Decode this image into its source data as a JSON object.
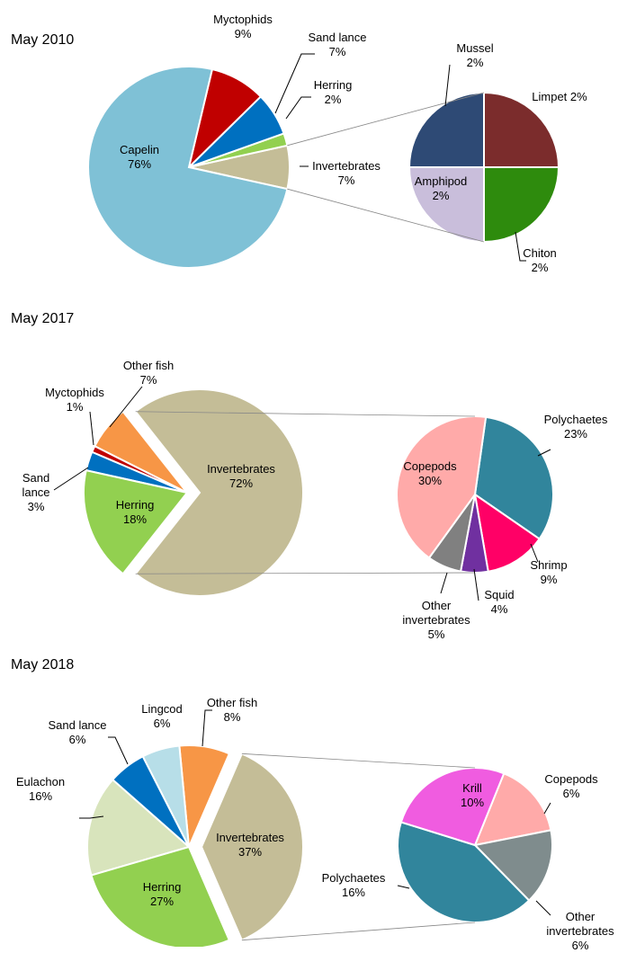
{
  "chart_data": [
    {
      "type": "pie",
      "title": "May 2010",
      "categories": [
        "Invertebrates",
        "Herring",
        "Sand lance",
        "Myctophids",
        "Capelin"
      ],
      "values": [
        7,
        2,
        7,
        9,
        76
      ],
      "value_labels": [
        "7%",
        "2%",
        "7%",
        "9%",
        "76%"
      ],
      "colors": [
        "#c4bd97",
        "#92d050",
        "#0070c0",
        "#c00000",
        "#7fc1d6"
      ],
      "sub": {
        "categories": [
          "Limpet",
          "Chiton",
          "Amphipod",
          "Mussel"
        ],
        "values": [
          2,
          2,
          2,
          2
        ],
        "value_labels": [
          "2%",
          "2%",
          "2%",
          "2%"
        ],
        "colors": [
          "#7b2c2c",
          "#2e8b0d",
          "#c9bedb",
          "#2e4a75"
        ]
      }
    },
    {
      "type": "pie",
      "title": "May 2017",
      "categories": [
        "Invertebrates",
        "Other fish",
        "Myctophids",
        "Sand lance",
        "Herring"
      ],
      "values": [
        72,
        7,
        1,
        3,
        18
      ],
      "value_labels": [
        "72%",
        "7%",
        "1%",
        "3%",
        "18%"
      ],
      "colors": [
        "#c4bd97",
        "#f79646",
        "#c00000",
        "#0070c0",
        "#92d050"
      ],
      "sub": {
        "categories": [
          "Polychaetes",
          "Shrimp",
          "Squid",
          "Other invertebrates",
          "Copepods"
        ],
        "values": [
          23,
          9,
          4,
          5,
          30
        ],
        "value_labels": [
          "23%",
          "9%",
          "4%",
          "5%",
          "30%"
        ],
        "colors": [
          "#31859c",
          "#ff0066",
          "#7030a0",
          "#808080",
          "#ffaaa9"
        ]
      }
    },
    {
      "type": "pie",
      "title": "May 2018",
      "categories": [
        "Invertebrates",
        "Other fish",
        "Lingcod",
        "Sand lance",
        "Eulachon",
        "Herring"
      ],
      "values": [
        37,
        8,
        6,
        6,
        16,
        27
      ],
      "value_labels": [
        "37%",
        "8%",
        "6%",
        "6%",
        "16%",
        "27%"
      ],
      "colors": [
        "#c4bd97",
        "#f79646",
        "#b7dee8",
        "#0070c0",
        "#d8e4bc",
        "#92d050"
      ],
      "sub": {
        "categories": [
          "Copepods",
          "Other invertebrates",
          "Polychaetes",
          "Krill"
        ],
        "values": [
          6,
          6,
          16,
          10
        ],
        "value_labels": [
          "6%",
          "6%",
          "16%",
          "10%"
        ],
        "colors": [
          "#ffaaa9",
          "#7f8c8d",
          "#31859c",
          "#f05ce0"
        ]
      }
    }
  ]
}
